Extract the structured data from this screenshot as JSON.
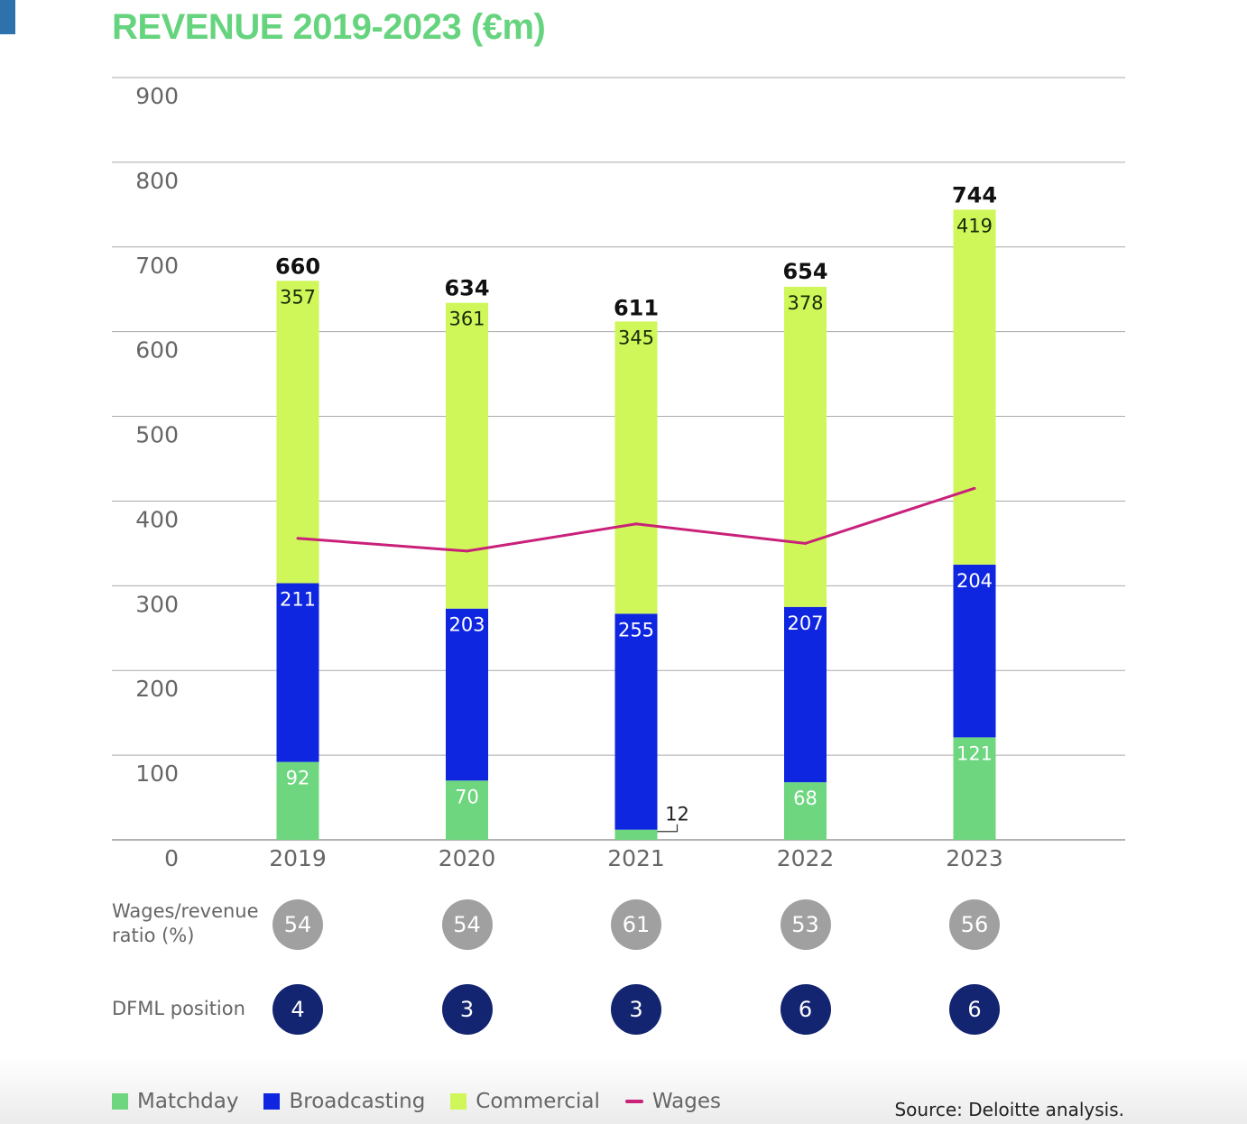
{
  "title": "REVENUE 2019-2023 (€m)",
  "colors": {
    "matchday": "#6dd67f",
    "broadcasting": "#0f26e0",
    "commercial": "#cff75a",
    "wages": "#c9217a",
    "ratio_circle": "#a0a0a0",
    "position_circle": "#132470",
    "title": "#66d47e"
  },
  "chart_data": {
    "type": "bar",
    "stacked": true,
    "title": "REVENUE 2019-2023 (€m)",
    "xlabel": "",
    "ylabel": "",
    "ylim": [
      0,
      900
    ],
    "yticks": [
      0,
      100,
      200,
      300,
      400,
      500,
      600,
      700,
      800,
      900
    ],
    "grid": true,
    "categories": [
      "2019",
      "2020",
      "2021",
      "2022",
      "2023"
    ],
    "series": [
      {
        "name": "Matchday",
        "values": [
          92,
          70,
          12,
          68,
          121
        ]
      },
      {
        "name": "Broadcasting",
        "values": [
          211,
          203,
          255,
          207,
          204
        ]
      },
      {
        "name": "Commercial",
        "values": [
          357,
          361,
          345,
          378,
          419
        ]
      }
    ],
    "totals": [
      660,
      634,
      611,
      654,
      744
    ],
    "line_series": {
      "name": "Wages",
      "type": "line",
      "values": [
        356,
        341,
        373,
        350,
        415
      ]
    },
    "legend_position": "bottom-left"
  },
  "rows": {
    "ratio_label_1": "Wages/revenue",
    "ratio_label_2": "ratio (%)",
    "ratio_values": [
      "54",
      "54",
      "61",
      "53",
      "56"
    ],
    "position_label": "DFML position",
    "position_values": [
      "4",
      "3",
      "3",
      "6",
      "6"
    ]
  },
  "legend": [
    {
      "label": "Matchday",
      "kind": "swatch"
    },
    {
      "label": "Broadcasting",
      "kind": "swatch"
    },
    {
      "label": "Commercial",
      "kind": "swatch"
    },
    {
      "label": "Wages",
      "kind": "line"
    }
  ],
  "source": "Source: Deloitte analysis."
}
